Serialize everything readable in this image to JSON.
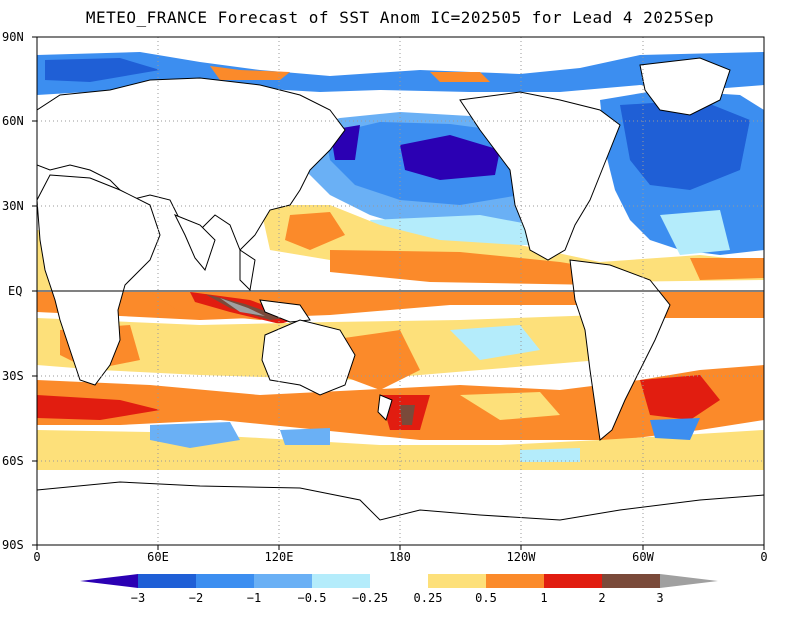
{
  "title": "METEO_FRANCE Forecast of SST Anom IC=202505 for Lead 4 2025Sep",
  "axes": {
    "y_ticks": [
      "90N",
      "60N",
      "30N",
      "EQ",
      "30S",
      "60S",
      "90S"
    ],
    "x_ticks": [
      "0",
      "60E",
      "120E",
      "180",
      "120W",
      "60W",
      "0"
    ]
  },
  "colorbar": {
    "labels": [
      "−3",
      "−2",
      "−1",
      "−0.5",
      "−0.25",
      "0.25",
      "0.5",
      "1",
      "2",
      "3"
    ],
    "colors": [
      "#2b00b3",
      "#1f5fd6",
      "#3c8ef0",
      "#6ab0f5",
      "#b4ecfb",
      "#ffffff",
      "#fde07a",
      "#fb8a2a",
      "#e11d10",
      "#7a4a3a",
      "#a0a0a0"
    ]
  },
  "palette": {
    "ocean_neutral": "#ffffff",
    "land": "#ffffff",
    "coast": "#000000"
  }
}
